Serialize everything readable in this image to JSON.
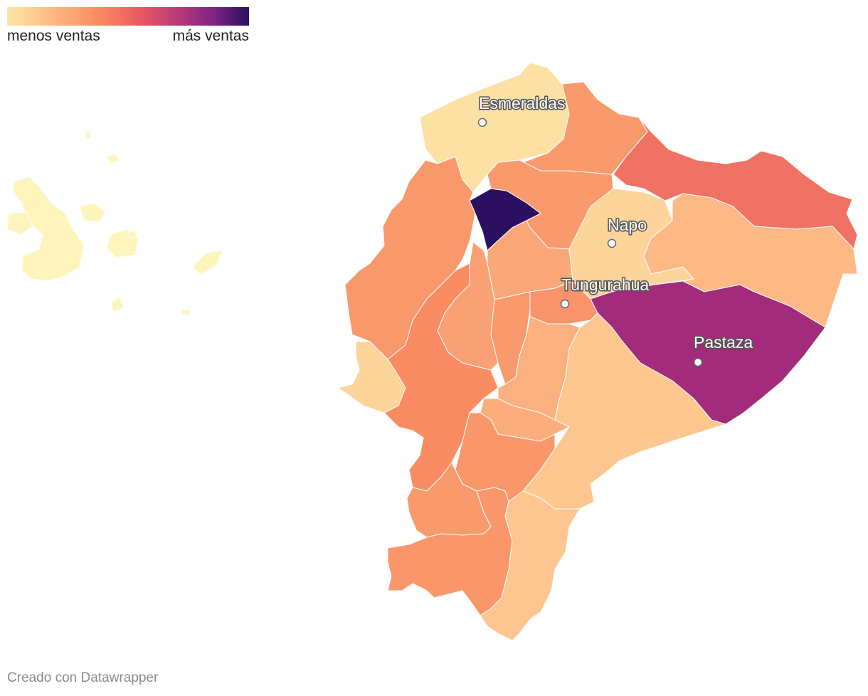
{
  "legend": {
    "low_label": "menos ventas",
    "high_label": "más ventas",
    "colors": [
      "#fde6a6",
      "#fdb27b",
      "#f8865e",
      "#e85963",
      "#b73779",
      "#7a2382",
      "#2a1060"
    ]
  },
  "labels": {
    "esmeraldas": "Esmeraldas",
    "napo": "Napo",
    "tungurahua": "Tungurahua",
    "pastaza": "Pastaza"
  },
  "credit": "Creado con Datawrapper",
  "region_colors": {
    "galapagos": "#fef5bd",
    "esmeraldas": "#fde0a4",
    "carchi_imbabura": "#f99a6c",
    "sucumbios": "#ef7264",
    "pichincha": "#2b1061",
    "napo": "#fdd49a",
    "orellana": "#fcb985",
    "tungurahua": "#f8936b",
    "pastaza": "#a32b7b",
    "morona": "#fdc78f",
    "zamora": "#fdc690",
    "manabi": "#f9996b",
    "santa_elena": "#fdd49a",
    "guayas": "#f98c63",
    "los_rios": "#f9a074",
    "cotopaxi": "#f9a778",
    "bolivar": "#f89a6c",
    "chimborazo": "#fbb07f",
    "canar": "#fbae7c",
    "azuay": "#f9976a",
    "el_oro": "#f99a6c",
    "loja": "#f9976a"
  }
}
